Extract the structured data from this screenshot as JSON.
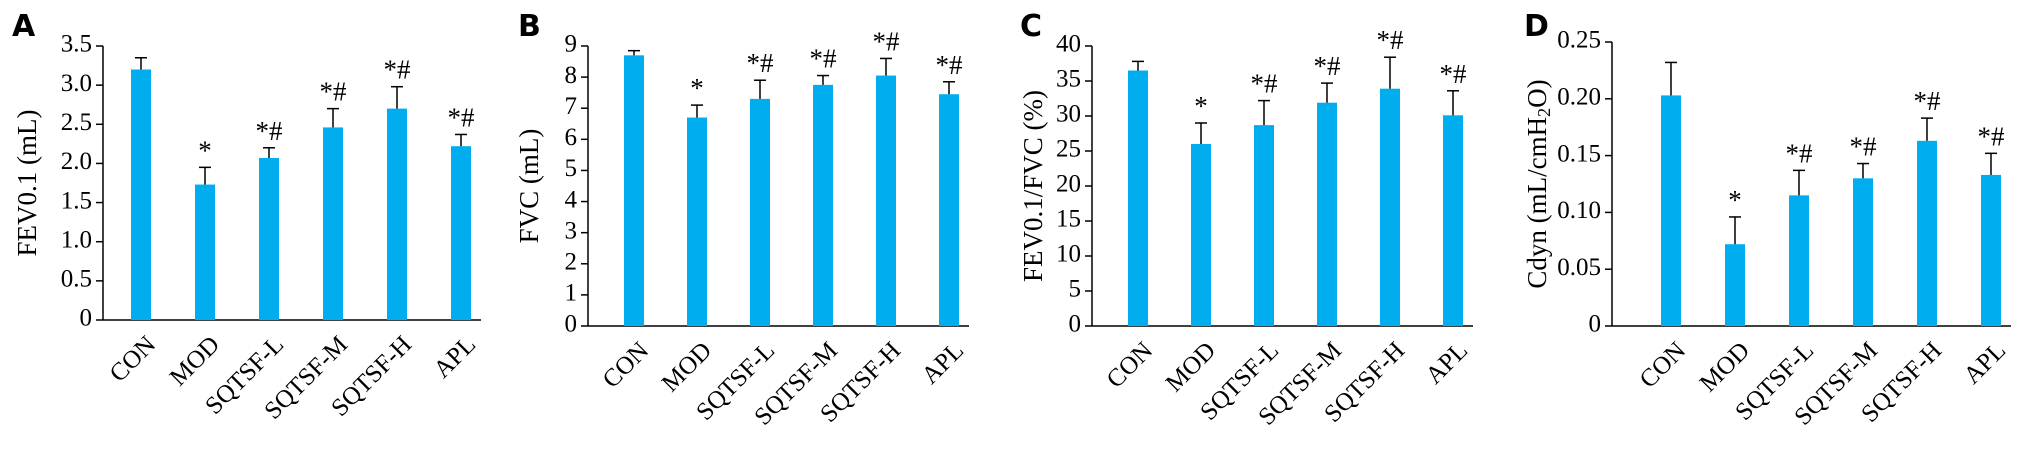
{
  "chart_data": [
    {
      "type": "bar",
      "panel": "A",
      "ylabel": "FEV0.1 (mL)",
      "ylim": [
        0,
        3.5
      ],
      "yticks": [
        "0",
        "0.5",
        "1.0",
        "1.5",
        "2.0",
        "2.5",
        "3.0",
        "3.5"
      ],
      "categories": [
        "CON",
        "MOD",
        "SQTSF-L",
        "SQTSF-M",
        "SQTSF-H",
        "APL"
      ],
      "values": [
        3.2,
        1.73,
        2.07,
        2.46,
        2.7,
        2.22
      ],
      "errors": [
        0.15,
        0.22,
        0.13,
        0.24,
        0.28,
        0.15
      ],
      "significance": [
        "",
        "*",
        "*#",
        "*#",
        "*#",
        "*#"
      ],
      "color": "#00AEEF"
    },
    {
      "type": "bar",
      "panel": "B",
      "ylabel": "FVC (mL)",
      "ylim": [
        0,
        9
      ],
      "yticks": [
        "0",
        "1",
        "2",
        "3",
        "4",
        "5",
        "6",
        "7",
        "8",
        "9"
      ],
      "categories": [
        "CON",
        "MOD",
        "SQTSF-L",
        "SQTSF-M",
        "SQTSF-H",
        "APL"
      ],
      "values": [
        8.7,
        6.7,
        7.3,
        7.75,
        8.05,
        7.45
      ],
      "errors": [
        0.15,
        0.4,
        0.6,
        0.3,
        0.55,
        0.4
      ],
      "significance": [
        "",
        "*",
        "*#",
        "*#",
        "*#",
        "*#"
      ],
      "color": "#00AEEF"
    },
    {
      "type": "bar",
      "panel": "C",
      "ylabel": "FEV0.1/FVC (%)",
      "ylim": [
        0,
        40
      ],
      "yticks": [
        "0",
        "5",
        "10",
        "15",
        "20",
        "25",
        "30",
        "35",
        "40"
      ],
      "categories": [
        "CON",
        "MOD",
        "SQTSF-L",
        "SQTSF-M",
        "SQTSF-H",
        "APL"
      ],
      "values": [
        36.5,
        26.0,
        28.7,
        31.9,
        33.9,
        30.1
      ],
      "errors": [
        1.3,
        3.0,
        3.5,
        2.8,
        4.5,
        3.5
      ],
      "significance": [
        "",
        "*",
        "*#",
        "*#",
        "*#",
        "*#"
      ],
      "color": "#00AEEF"
    },
    {
      "type": "bar",
      "panel": "D",
      "ylabel": "Cdyn (mL/cmH",
      "ylabel_sub": "2",
      "ylabel_end": "O)",
      "ylim": [
        0,
        0.25
      ],
      "yticks": [
        "0",
        "0.05",
        "0.10",
        "0.15",
        "0.20",
        "0.25"
      ],
      "categories": [
        "CON",
        "MOD",
        "SQTSF-L",
        "SQTSF-M",
        "SQTSF-H",
        "APL"
      ],
      "values": [
        0.203,
        0.072,
        0.115,
        0.13,
        0.163,
        0.133
      ],
      "errors": [
        0.029,
        0.024,
        0.022,
        0.013,
        0.02,
        0.019
      ],
      "significance": [
        "",
        "*",
        "*#",
        "*#",
        "*#",
        "*#"
      ],
      "color": "#00AEEF"
    }
  ]
}
